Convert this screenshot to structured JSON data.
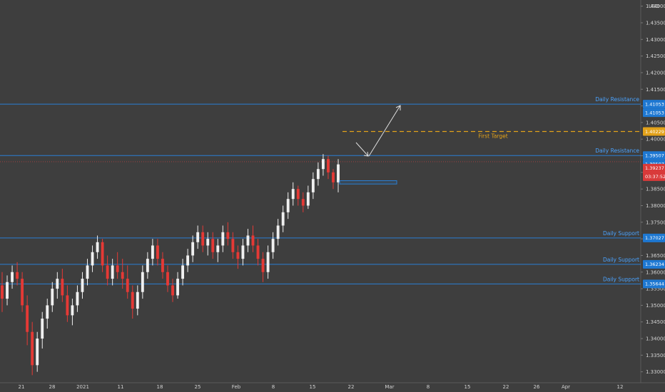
{
  "currency": "USD",
  "colors": {
    "background": "#3e3e3e",
    "axis_text": "#d2d2d2",
    "level_line": "#2a7fd4",
    "level_text": "#4aa3ff",
    "badge_blue": "#1e78d2",
    "target": "#e3a21a",
    "badge_red": "#d93a3a",
    "bull": "#f0f0f0",
    "bear": "#e53935"
  },
  "chart_data": {
    "type": "candlestick",
    "y_axis": {
      "range": [
        1.328,
        1.441
      ],
      "ticks": [
        "1.44000",
        "1.43500",
        "1.43000",
        "1.42500",
        "1.42000",
        "1.41500",
        "1.41000",
        "1.40500",
        "1.40000",
        "1.39500",
        "1.39000",
        "1.38500",
        "1.38000",
        "1.37500",
        "1.37000",
        "1.36500",
        "1.36000",
        "1.35500",
        "1.35000",
        "1.34500",
        "1.34000",
        "1.33500",
        "1.33000"
      ],
      "tick_values": [
        1.44,
        1.435,
        1.43,
        1.425,
        1.42,
        1.415,
        1.41,
        1.405,
        1.4,
        1.395,
        1.39,
        1.385,
        1.38,
        1.375,
        1.37,
        1.365,
        1.36,
        1.355,
        1.35,
        1.345,
        1.34,
        1.335,
        1.33
      ],
      "currency_label": "USD"
    },
    "x_axis": {
      "ticks": [
        "21",
        "28",
        "2021",
        "11",
        "18",
        "25",
        "Feb",
        "8",
        "15",
        "22",
        "Mar",
        "8",
        "15",
        "22",
        "26",
        "Apr",
        "12"
      ]
    },
    "levels": [
      {
        "name": "Daily Resistance",
        "value": 1.41053,
        "badges": [
          "1.41053",
          "1.41053"
        ],
        "style": "solid"
      },
      {
        "name": "Daily Resistance",
        "value": 1.39507,
        "badges": [
          "1.39507",
          "1.39507"
        ],
        "style": "solid"
      },
      {
        "name": "Daily Support",
        "value": 1.37027,
        "badges": [
          "1.37027"
        ],
        "style": "solid"
      },
      {
        "name": "Daily Support",
        "value": 1.36234,
        "badges": [
          "1.36234"
        ],
        "style": "solid"
      },
      {
        "name": "Daily Support",
        "value": 1.35644,
        "badges": [
          "1.35644"
        ],
        "style": "solid"
      }
    ],
    "target": {
      "name": "First Target",
      "value": 1.40229,
      "badge": "1.40229"
    },
    "last_price": {
      "value": 1.39237,
      "badge": "1.39237",
      "countdown": "03:37:52"
    },
    "zone": {
      "low": 1.3865,
      "high": 1.3875
    },
    "candles": [
      [
        1.356,
        1.36,
        1.348,
        1.352
      ],
      [
        1.352,
        1.359,
        1.35,
        1.357
      ],
      [
        1.357,
        1.362,
        1.355,
        1.36
      ],
      [
        1.36,
        1.363,
        1.356,
        1.358
      ],
      [
        1.358,
        1.36,
        1.348,
        1.35
      ],
      [
        1.35,
        1.353,
        1.338,
        1.342
      ],
      [
        1.342,
        1.345,
        1.329,
        1.332
      ],
      [
        1.332,
        1.342,
        1.33,
        1.34
      ],
      [
        1.34,
        1.348,
        1.337,
        1.346
      ],
      [
        1.346,
        1.352,
        1.343,
        1.35
      ],
      [
        1.35,
        1.357,
        1.348,
        1.355
      ],
      [
        1.355,
        1.36,
        1.352,
        1.358
      ],
      [
        1.358,
        1.361,
        1.351,
        1.353
      ],
      [
        1.353,
        1.356,
        1.345,
        1.347
      ],
      [
        1.347,
        1.352,
        1.344,
        1.35
      ],
      [
        1.35,
        1.356,
        1.348,
        1.354
      ],
      [
        1.354,
        1.36,
        1.352,
        1.358
      ],
      [
        1.358,
        1.364,
        1.356,
        1.362
      ],
      [
        1.362,
        1.368,
        1.36,
        1.366
      ],
      [
        1.366,
        1.371,
        1.364,
        1.369
      ],
      [
        1.369,
        1.37,
        1.36,
        1.362
      ],
      [
        1.362,
        1.365,
        1.356,
        1.358
      ],
      [
        1.358,
        1.364,
        1.356,
        1.362
      ],
      [
        1.362,
        1.366,
        1.358,
        1.36
      ],
      [
        1.36,
        1.364,
        1.355,
        1.358
      ],
      [
        1.358,
        1.362,
        1.352,
        1.354
      ],
      [
        1.354,
        1.356,
        1.346,
        1.349
      ],
      [
        1.349,
        1.356,
        1.347,
        1.354
      ],
      [
        1.354,
        1.362,
        1.352,
        1.36
      ],
      [
        1.36,
        1.366,
        1.358,
        1.364
      ],
      [
        1.364,
        1.37,
        1.362,
        1.368
      ],
      [
        1.368,
        1.37,
        1.362,
        1.364
      ],
      [
        1.364,
        1.366,
        1.358,
        1.36
      ],
      [
        1.36,
        1.362,
        1.354,
        1.356
      ],
      [
        1.356,
        1.358,
        1.351,
        1.353
      ],
      [
        1.353,
        1.36,
        1.352,
        1.358
      ],
      [
        1.358,
        1.364,
        1.356,
        1.362
      ],
      [
        1.362,
        1.367,
        1.36,
        1.365
      ],
      [
        1.365,
        1.371,
        1.363,
        1.369
      ],
      [
        1.369,
        1.374,
        1.367,
        1.372
      ],
      [
        1.372,
        1.374,
        1.366,
        1.368
      ],
      [
        1.368,
        1.372,
        1.365,
        1.37
      ],
      [
        1.37,
        1.372,
        1.364,
        1.366
      ],
      [
        1.366,
        1.37,
        1.363,
        1.368
      ],
      [
        1.368,
        1.374,
        1.366,
        1.372
      ],
      [
        1.372,
        1.375,
        1.368,
        1.37
      ],
      [
        1.37,
        1.372,
        1.364,
        1.366
      ],
      [
        1.366,
        1.368,
        1.361,
        1.364
      ],
      [
        1.364,
        1.37,
        1.362,
        1.368
      ],
      [
        1.368,
        1.373,
        1.366,
        1.371
      ],
      [
        1.371,
        1.374,
        1.366,
        1.368
      ],
      [
        1.368,
        1.37,
        1.362,
        1.364
      ],
      [
        1.364,
        1.366,
        1.357,
        1.36
      ],
      [
        1.36,
        1.368,
        1.358,
        1.366
      ],
      [
        1.366,
        1.372,
        1.364,
        1.37
      ],
      [
        1.37,
        1.376,
        1.368,
        1.374
      ],
      [
        1.374,
        1.38,
        1.372,
        1.378
      ],
      [
        1.378,
        1.384,
        1.376,
        1.382
      ],
      [
        1.382,
        1.387,
        1.38,
        1.385
      ],
      [
        1.385,
        1.386,
        1.38,
        1.382
      ],
      [
        1.382,
        1.384,
        1.378,
        1.38
      ],
      [
        1.38,
        1.386,
        1.379,
        1.384
      ],
      [
        1.384,
        1.39,
        1.382,
        1.388
      ],
      [
        1.388,
        1.393,
        1.386,
        1.391
      ],
      [
        1.391,
        1.3955,
        1.389,
        1.394
      ],
      [
        1.394,
        1.395,
        1.388,
        1.39
      ],
      [
        1.39,
        1.391,
        1.385,
        1.387
      ],
      [
        1.387,
        1.394,
        1.384,
        1.3924
      ]
    ]
  },
  "icons": {
    "arrow": "projection-arrow-icon"
  }
}
